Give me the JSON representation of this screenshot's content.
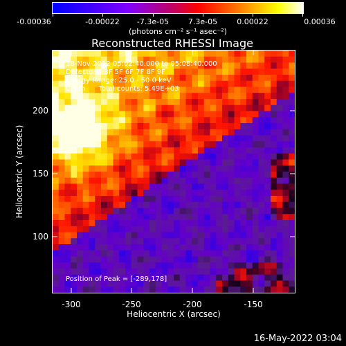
{
  "colorbar": {
    "tick_labels": [
      "-0.00036",
      "-0.00022",
      "-7.3e-05",
      "7.3e-05",
      "0.00022",
      "0.00036"
    ],
    "unit_label": "(photons cm⁻² s⁻¹ asec⁻²)",
    "colors": [
      "#0000ff",
      "#7f00ff",
      "#ff0000",
      "#ff8000",
      "#ffff00",
      "#ffffff"
    ]
  },
  "plot": {
    "title": "Reconstructed RHESSI Image",
    "info_lines": [
      "18-Nov-2012 05:02:40.000 to 05:08:40.000",
      "Detectors: 3F 5F 6F 7F 8F 9F",
      "Energy Range: 25.0 - 50.0 keV",
      "Clean      Total counts: 5.49E+03"
    ],
    "peak_label": "Position of Peak = [-289,178]"
  },
  "axes": {
    "x_title": "Heliocentric X (arcsec)",
    "y_title": "Heliocentric Y (arcsec)",
    "x_ticks": [
      "-300",
      "-250",
      "-200",
      "-150"
    ],
    "y_ticks": [
      "200",
      "150",
      "100"
    ]
  },
  "timestamp": "16-May-2022 03:04"
}
